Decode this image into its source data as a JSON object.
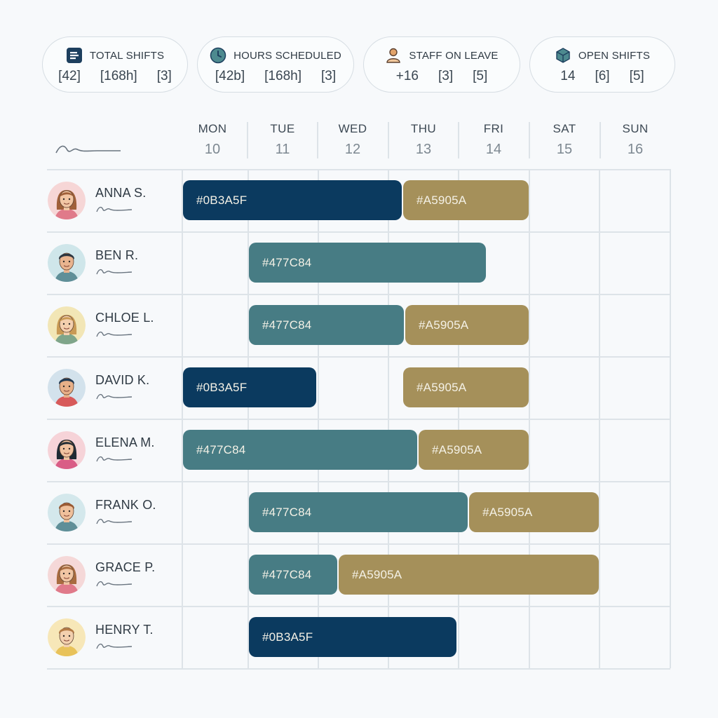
{
  "colors": {
    "navy": "#0B3A5F",
    "teal": "#477C84",
    "gold": "#A5905A"
  },
  "stats": [
    {
      "icon": "list-icon",
      "title": "TOTAL SHIFTS",
      "values": [
        "[42]",
        "[168h]",
        "[3]"
      ]
    },
    {
      "icon": "clock-icon",
      "title": "HOURS SCHEDULED",
      "values": [
        "[42b]",
        "[168h]",
        "[3]"
      ]
    },
    {
      "icon": "person-icon",
      "title": "STAFF ON LEAVE",
      "values": [
        "+16",
        "[3]",
        "[5]"
      ]
    },
    {
      "icon": "cube-icon",
      "title": "OPEN SHIFTS",
      "values": [
        "14",
        "[6]",
        "[5]"
      ]
    }
  ],
  "days": [
    {
      "name": "MON",
      "num": "10"
    },
    {
      "name": "TUE",
      "num": "11"
    },
    {
      "name": "WED",
      "num": "12"
    },
    {
      "name": "THU",
      "num": "13"
    },
    {
      "name": "FRI",
      "num": "14"
    },
    {
      "name": "SAT",
      "num": "15"
    },
    {
      "name": "SUN",
      "num": "16"
    }
  ],
  "employees": [
    {
      "name": "ANNA S.",
      "avatar": "woman-avatar",
      "shifts": [
        {
          "label": "#0B3A5F",
          "color": "#0B3A5F",
          "start": 0,
          "end": 3.2
        },
        {
          "label": "#A5905A",
          "color": "#A5905A",
          "start": 3.2,
          "end": 5
        }
      ]
    },
    {
      "name": "BEN R.",
      "avatar": "man-avatar",
      "shifts": [
        {
          "label": "#477C84",
          "color": "#477C84",
          "start": 1,
          "end": 4.4
        }
      ]
    },
    {
      "name": "CHLOE L.",
      "avatar": "woman-avatar",
      "shifts": [
        {
          "label": "#477C84",
          "color": "#477C84",
          "start": 1,
          "end": 3.23
        },
        {
          "label": "#A5905A",
          "color": "#A5905A",
          "start": 3.23,
          "end": 5
        }
      ]
    },
    {
      "name": "DAVID K.",
      "avatar": "man-avatar",
      "shifts": [
        {
          "label": "#0B3A5F",
          "color": "#0B3A5F",
          "start": 0,
          "end": 1.98
        },
        {
          "label": "#A5905A",
          "color": "#A5905A",
          "start": 3.2,
          "end": 5
        }
      ]
    },
    {
      "name": "ELENA M.",
      "avatar": "woman-avatar",
      "shifts": [
        {
          "label": "#477C84",
          "color": "#477C84",
          "start": 0,
          "end": 3.42
        },
        {
          "label": "#A5905A",
          "color": "#A5905A",
          "start": 3.42,
          "end": 5
        }
      ]
    },
    {
      "name": "FRANK O.",
      "avatar": "man-avatar",
      "shifts": [
        {
          "label": "#477C84",
          "color": "#477C84",
          "start": 1,
          "end": 4.14
        },
        {
          "label": "#A5905A",
          "color": "#A5905A",
          "start": 4.14,
          "end": 6
        }
      ]
    },
    {
      "name": "GRACE P.",
      "avatar": "woman-avatar",
      "shifts": [
        {
          "label": "#477C84",
          "color": "#477C84",
          "start": 1,
          "end": 2.28
        },
        {
          "label": "#A5905A",
          "color": "#A5905A",
          "start": 2.28,
          "end": 6
        }
      ]
    },
    {
      "name": "HENRY T.",
      "avatar": "man-avatar",
      "shifts": [
        {
          "label": "#0B3A5F",
          "color": "#0B3A5F",
          "start": 1,
          "end": 3.98
        }
      ]
    }
  ]
}
